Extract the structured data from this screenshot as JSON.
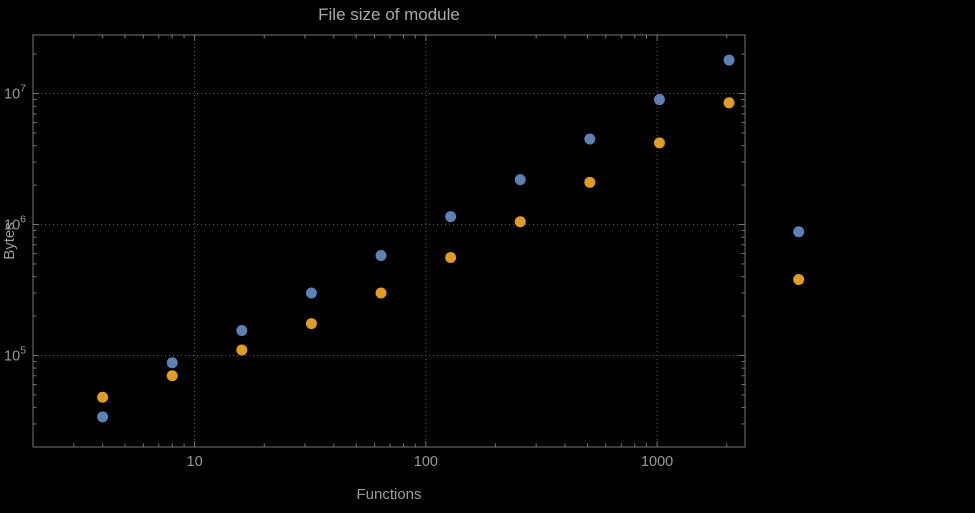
{
  "chart_data": {
    "type": "scatter",
    "title": "File size of module",
    "xlabel": "Functions",
    "ylabel": "Bytes",
    "x_scale": "log",
    "y_scale": "log",
    "grid": "dotted",
    "legend": "none",
    "xlim": [
      2,
      2400
    ],
    "ylim": [
      20000,
      28000000
    ],
    "marker_radius": 5.5,
    "x": [
      4,
      8,
      16,
      32,
      64,
      128,
      256,
      512,
      1024,
      2048,
      4096
    ],
    "series": [
      {
        "name": "blue",
        "color": "#5e81b5",
        "values": [
          34000,
          88000,
          155000,
          300000,
          580000,
          1150000,
          2200000,
          4500000,
          9000000,
          18000000,
          880000
        ]
      },
      {
        "name": "orange",
        "color": "#e19c24",
        "values": [
          48000,
          70000,
          110000,
          175000,
          300000,
          560000,
          1050000,
          2100000,
          4200000,
          8500000,
          380000
        ]
      }
    ],
    "x_ticks": [
      {
        "value": 10,
        "label": "10"
      },
      {
        "value": 100,
        "label": "100"
      },
      {
        "value": 1000,
        "label": "1000"
      }
    ],
    "y_ticks": [
      {
        "value": 100000,
        "label": "10^5"
      },
      {
        "value": 1000000,
        "label": "10^6"
      },
      {
        "value": 10000000,
        "label": "10^7"
      }
    ]
  },
  "colors": {
    "background": "#000000",
    "frame": "#757575",
    "grid": "#5e5e5e",
    "text": "#999999",
    "title_text": "#a9a9a9"
  }
}
